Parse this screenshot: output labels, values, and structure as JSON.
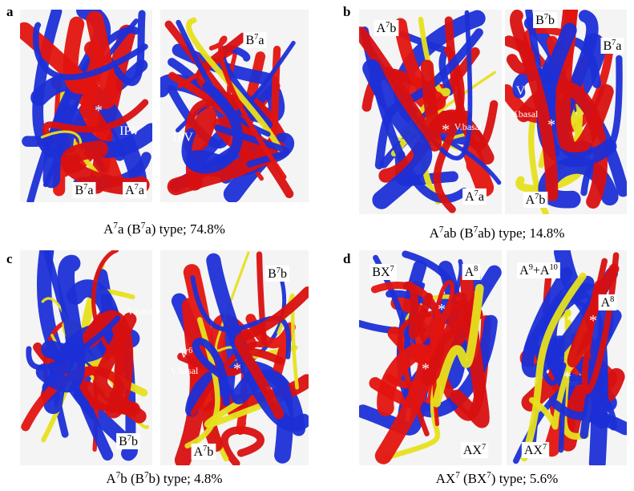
{
  "panels": [
    {
      "letter": "a",
      "caption": [
        "A",
        "7",
        "a (B",
        "7",
        "a) type; 74.8%"
      ],
      "labels": [
        [
          "*"
        ],
        [
          "IPV"
        ],
        [
          "B",
          "7",
          "a"
        ],
        [
          "A",
          "7",
          "a"
        ],
        [
          "B",
          "7",
          "a"
        ],
        [
          "IPV"
        ]
      ]
    },
    {
      "letter": "b",
      "caption": [
        "A",
        "7",
        "ab (B",
        "7",
        "ab) type; 14.8%"
      ],
      "labels": [
        [
          "A",
          "7",
          "b"
        ],
        [
          "*"
        ],
        [
          "V.basal"
        ],
        [
          "A",
          "7",
          "a"
        ],
        [
          "B",
          "7",
          "b"
        ],
        [
          "B",
          "7",
          "a"
        ],
        [
          "V",
          "6"
        ],
        [
          "V.basal"
        ],
        [
          "*"
        ],
        [
          "A",
          "7",
          "b"
        ]
      ]
    },
    {
      "letter": "c",
      "caption": [
        "A",
        "7",
        "b (B",
        "7",
        "b) type; 4.8%"
      ],
      "labels": [
        [
          "V.basal"
        ],
        [
          "B",
          "7",
          "b"
        ],
        [
          "B",
          "7",
          "b"
        ],
        [
          "V",
          "6"
        ],
        [
          "V.basal"
        ],
        [
          "*"
        ],
        [
          "A",
          "7",
          "b"
        ]
      ]
    },
    {
      "letter": "d",
      "caption": [
        "AX",
        "7",
        " (BX",
        "7",
        ") type; 5.6%"
      ],
      "labels": [
        [
          "BX",
          "7"
        ],
        [
          "A",
          "8"
        ],
        [
          "*"
        ],
        [
          "*"
        ],
        [
          "AX",
          "7"
        ],
        [
          "A",
          "9",
          "+A",
          "10"
        ],
        [
          "A",
          "8"
        ],
        [
          "*"
        ],
        [
          "*"
        ],
        [
          "*"
        ],
        [
          "AX",
          "7"
        ]
      ]
    }
  ]
}
